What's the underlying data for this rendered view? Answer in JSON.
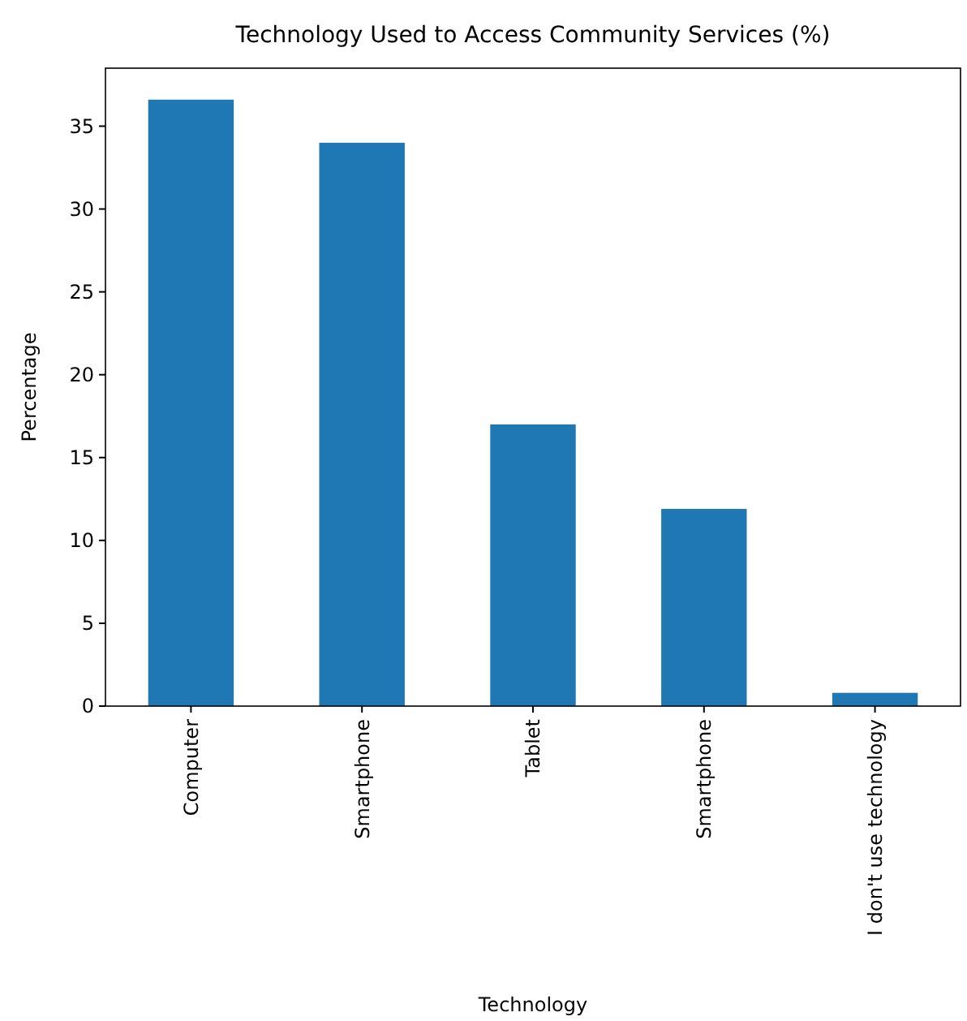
{
  "chart_data": {
    "type": "bar",
    "title": "Technology Used to Access Community Services (%)",
    "xlabel": "Technology",
    "ylabel": "Percentage",
    "categories": [
      "Computer",
      "Smartphone",
      "Tablet",
      "Smartphone",
      "I don't use technology"
    ],
    "values": [
      36.6,
      34.0,
      17.0,
      11.9,
      0.8
    ],
    "color": "#1f77b4",
    "ylim": [
      0,
      38.5
    ],
    "yticks": [
      0,
      5,
      10,
      15,
      20,
      25,
      30,
      35
    ]
  }
}
